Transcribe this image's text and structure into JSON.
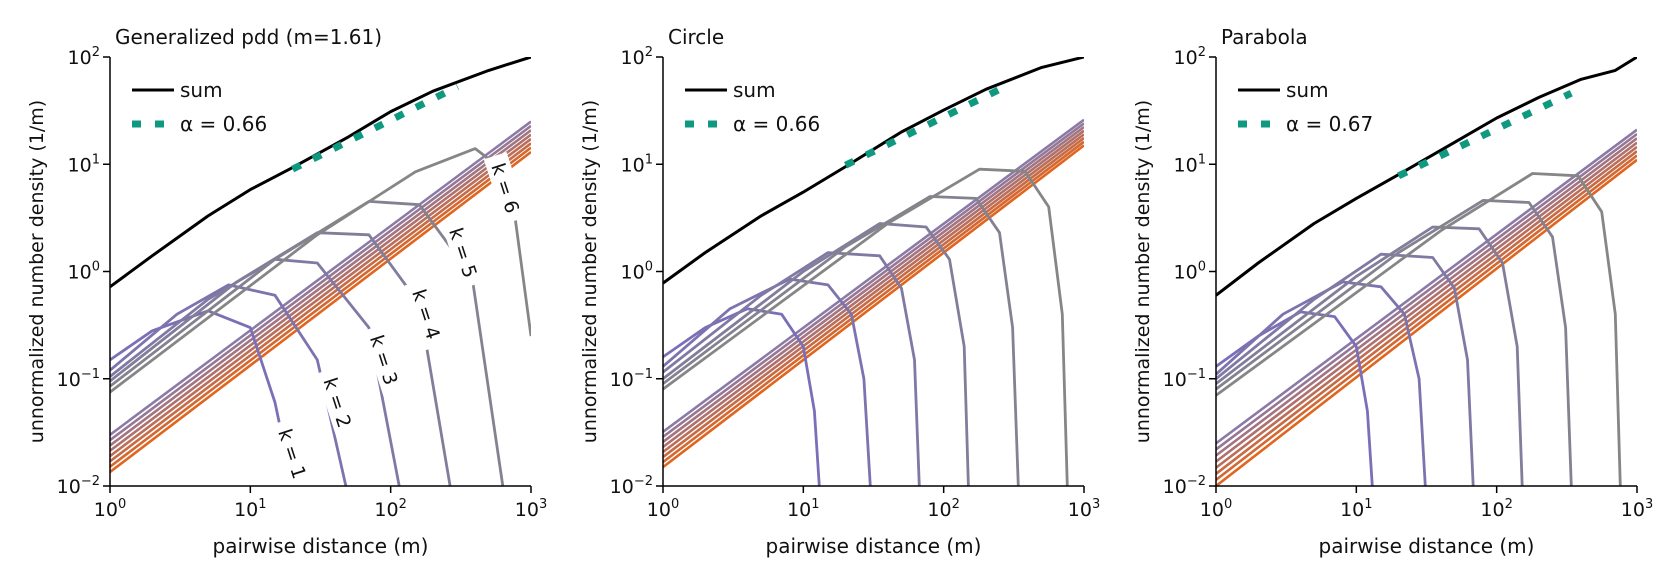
{
  "colors": {
    "sum": "#000000",
    "fit": "#0f9980",
    "k_start": "#7a70b8",
    "k_end": "#868686",
    "band_start": "#8a7aa8",
    "band_end": "#e0651e"
  },
  "chart_data": [
    {
      "type": "line",
      "title": "Generalized pdd (m=1.61)",
      "xlabel": "pairwise distance (m)",
      "ylabel": "unnormalized number density (1/m)",
      "xscale": "log",
      "yscale": "log",
      "xlim": [
        1,
        1000
      ],
      "ylim": [
        0.01,
        100
      ],
      "xticks": [
        {
          "base": "10",
          "exp": "0"
        },
        {
          "base": "10",
          "exp": "1"
        },
        {
          "base": "10",
          "exp": "2"
        },
        {
          "base": "10",
          "exp": "3"
        }
      ],
      "yticks": [
        {
          "base": "10",
          "exp": "−2"
        },
        {
          "base": "10",
          "exp": "−1"
        },
        {
          "base": "10",
          "exp": "0"
        },
        {
          "base": "10",
          "exp": "1"
        },
        {
          "base": "10",
          "exp": "2"
        }
      ],
      "legend": {
        "location": "top-left",
        "entries": [
          {
            "label": "sum",
            "style": "solid"
          },
          {
            "label": "α = 0.66",
            "style": "dashed"
          }
        ]
      },
      "sum": {
        "x": [
          1,
          2,
          5,
          10,
          20,
          50,
          100,
          200,
          500,
          1000
        ],
        "y": [
          0.72,
          1.4,
          3.3,
          5.8,
          9.3,
          18,
          31,
          48,
          75,
          100
        ]
      },
      "fit": {
        "alpha": 0.66,
        "x": [
          20,
          300
        ],
        "y": [
          9.0,
          53
        ]
      },
      "band": {
        "count": 8,
        "x": [
          1,
          1000
        ],
        "y_low": [
          0.0135,
          13
        ],
        "y_high": [
          0.03,
          25
        ]
      },
      "k_curves": [
        {
          "k": 1,
          "x": [
            1,
            2,
            5,
            10,
            15,
            20
          ],
          "y": [
            0.15,
            0.28,
            0.43,
            0.3,
            0.06,
            0.01
          ]
        },
        {
          "k": 2,
          "x": [
            1,
            3,
            7,
            15,
            30,
            48
          ],
          "y": [
            0.12,
            0.4,
            0.75,
            0.6,
            0.15,
            0.01
          ]
        },
        {
          "k": 3,
          "x": [
            1,
            5,
            15,
            30,
            70,
            115
          ],
          "y": [
            0.105,
            0.55,
            1.3,
            1.2,
            0.3,
            0.01
          ]
        },
        {
          "k": 4,
          "x": [
            1,
            8,
            30,
            70,
            160,
            265
          ],
          "y": [
            0.095,
            0.8,
            2.3,
            2.2,
            0.5,
            0.01
          ]
        },
        {
          "k": 5,
          "x": [
            1,
            15,
            70,
            160,
            380,
            630
          ],
          "y": [
            0.085,
            1.3,
            4.5,
            4.2,
            0.9,
            0.01
          ]
        },
        {
          "k": 6,
          "x": [
            1,
            30,
            150,
            400,
            700,
            1000
          ],
          "y": [
            0.075,
            2.2,
            8.5,
            14,
            8,
            0.25
          ]
        }
      ],
      "annotations": [
        "k = 1",
        "k = 2",
        "k = 3",
        "k = 4",
        "k = 5",
        "k = 6"
      ]
    },
    {
      "type": "line",
      "title": "Circle",
      "xlabel": "pairwise distance (m)",
      "ylabel": "unnormalized number density (1/m)",
      "xscale": "log",
      "yscale": "log",
      "xlim": [
        1,
        1000
      ],
      "ylim": [
        0.01,
        100
      ],
      "xticks": [
        {
          "base": "10",
          "exp": "0"
        },
        {
          "base": "10",
          "exp": "1"
        },
        {
          "base": "10",
          "exp": "2"
        },
        {
          "base": "10",
          "exp": "3"
        }
      ],
      "yticks": [
        {
          "base": "10",
          "exp": "−2"
        },
        {
          "base": "10",
          "exp": "−1"
        },
        {
          "base": "10",
          "exp": "0"
        },
        {
          "base": "10",
          "exp": "1"
        },
        {
          "base": "10",
          "exp": "2"
        }
      ],
      "legend": {
        "location": "top-left",
        "entries": [
          {
            "label": "sum",
            "style": "solid"
          },
          {
            "label": "α = 0.66",
            "style": "dashed"
          }
        ]
      },
      "sum": {
        "x": [
          1,
          2,
          5,
          10,
          20,
          50,
          100,
          200,
          500,
          1000
        ],
        "y": [
          0.78,
          1.5,
          3.3,
          5.5,
          9.5,
          20,
          32,
          50,
          80,
          100
        ]
      },
      "fit": {
        "alpha": 0.66,
        "x": [
          20,
          300
        ],
        "y": [
          9.8,
          56
        ]
      },
      "band": {
        "count": 8,
        "x": [
          1,
          1000
        ],
        "y_low": [
          0.015,
          15
        ],
        "y_high": [
          0.032,
          26
        ]
      },
      "k_curves": [
        {
          "k": 1,
          "x": [
            1,
            2,
            4,
            7,
            10,
            12,
            13
          ],
          "y": [
            0.16,
            0.3,
            0.45,
            0.4,
            0.2,
            0.05,
            0.01
          ]
        },
        {
          "k": 2,
          "x": [
            1,
            3,
            8,
            15,
            22,
            27,
            30
          ],
          "y": [
            0.13,
            0.45,
            0.85,
            0.75,
            0.4,
            0.1,
            0.01
          ]
        },
        {
          "k": 3,
          "x": [
            1,
            5,
            15,
            35,
            50,
            62,
            67
          ],
          "y": [
            0.115,
            0.6,
            1.5,
            1.4,
            0.7,
            0.15,
            0.01
          ]
        },
        {
          "k": 4,
          "x": [
            1,
            10,
            35,
            75,
            110,
            140,
            150
          ],
          "y": [
            0.1,
            1.0,
            2.8,
            2.6,
            1.3,
            0.2,
            0.01
          ]
        },
        {
          "k": 5,
          "x": [
            1,
            20,
            80,
            170,
            250,
            310,
            340
          ],
          "y": [
            0.09,
            1.7,
            5.0,
            4.8,
            2.3,
            0.3,
            0.01
          ]
        },
        {
          "k": 6,
          "x": [
            1,
            40,
            180,
            380,
            560,
            700,
            760
          ],
          "y": [
            0.08,
            2.8,
            9.0,
            8.6,
            4.0,
            0.4,
            0.01
          ]
        }
      ]
    },
    {
      "type": "line",
      "title": "Parabola",
      "xlabel": "pairwise distance (m)",
      "ylabel": "unnormalized number density (1/m)",
      "xscale": "log",
      "yscale": "log",
      "xlim": [
        1,
        1000
      ],
      "ylim": [
        0.01,
        100
      ],
      "xticks": [
        {
          "base": "10",
          "exp": "0"
        },
        {
          "base": "10",
          "exp": "1"
        },
        {
          "base": "10",
          "exp": "2"
        },
        {
          "base": "10",
          "exp": "3"
        }
      ],
      "yticks": [
        {
          "base": "10",
          "exp": "−2"
        },
        {
          "base": "10",
          "exp": "−1"
        },
        {
          "base": "10",
          "exp": "0"
        },
        {
          "base": "10",
          "exp": "1"
        },
        {
          "base": "10",
          "exp": "2"
        }
      ],
      "legend": {
        "location": "top-left",
        "entries": [
          {
            "label": "sum",
            "style": "solid"
          },
          {
            "label": "α = 0.67",
            "style": "dashed"
          }
        ]
      },
      "sum": {
        "x": [
          1,
          2,
          5,
          10,
          20,
          50,
          100,
          200,
          400,
          700,
          1000
        ],
        "y": [
          0.6,
          1.2,
          2.8,
          4.8,
          8.0,
          16,
          27,
          42,
          62,
          75,
          100
        ]
      },
      "fit": {
        "alpha": 0.67,
        "x": [
          20,
          340
        ],
        "y": [
          7.8,
          46
        ]
      },
      "band": {
        "count": 8,
        "x": [
          1,
          1000
        ],
        "y_low": [
          0.01,
          11
        ],
        "y_high": [
          0.025,
          21
        ]
      },
      "k_curves": [
        {
          "k": 1,
          "x": [
            1,
            2,
            4,
            7,
            10,
            12,
            13
          ],
          "y": [
            0.13,
            0.25,
            0.42,
            0.38,
            0.2,
            0.05,
            0.01
          ]
        },
        {
          "k": 2,
          "x": [
            1,
            3,
            8,
            15,
            22,
            28,
            31
          ],
          "y": [
            0.11,
            0.4,
            0.8,
            0.72,
            0.4,
            0.1,
            0.01
          ]
        },
        {
          "k": 3,
          "x": [
            1,
            5,
            15,
            35,
            50,
            62,
            68
          ],
          "y": [
            0.1,
            0.55,
            1.45,
            1.35,
            0.7,
            0.15,
            0.01
          ]
        },
        {
          "k": 4,
          "x": [
            1,
            10,
            35,
            75,
            110,
            140,
            152
          ],
          "y": [
            0.09,
            0.9,
            2.6,
            2.5,
            1.2,
            0.2,
            0.01
          ]
        },
        {
          "k": 5,
          "x": [
            1,
            20,
            80,
            170,
            250,
            310,
            340
          ],
          "y": [
            0.08,
            1.5,
            4.6,
            4.4,
            2.1,
            0.3,
            0.01
          ]
        },
        {
          "k": 6,
          "x": [
            1,
            40,
            180,
            380,
            560,
            700,
            760
          ],
          "y": [
            0.07,
            2.4,
            8.2,
            7.8,
            3.6,
            0.4,
            0.01
          ]
        }
      ]
    }
  ]
}
